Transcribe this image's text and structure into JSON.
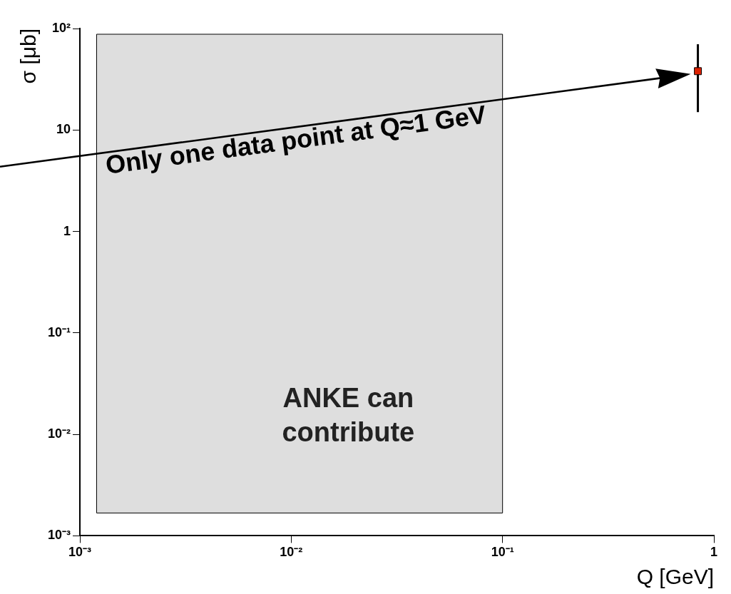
{
  "chart_data": {
    "type": "scatter",
    "xlabel": "Q [GeV]",
    "ylabel": "σ [μb]",
    "log": "xy",
    "grid": false,
    "legend": false,
    "marker": "square",
    "xlim": [
      0.001,
      1
    ],
    "ylim": [
      0.001,
      100
    ],
    "xticks": [
      {
        "value": 0.001,
        "label": "10⁻³"
      },
      {
        "value": 0.01,
        "label": "10⁻²"
      },
      {
        "value": 0.1,
        "label": "10⁻¹"
      },
      1
    ],
    "yticks": [
      {
        "value": 0.001,
        "label": "10⁻³"
      },
      {
        "value": 0.01,
        "label": "10⁻²"
      },
      {
        "value": 0.1,
        "label": "10⁻¹"
      },
      1,
      10,
      {
        "value": 100,
        "label": "10²"
      }
    ],
    "series": [
      {
        "color": "#dd2200",
        "x": [
          0.84
        ],
        "values": [
          38
        ],
        "errors": [
          [
            15,
            70
          ]
        ]
      }
    ],
    "bands": [
      {
        "axis": "x",
        "from": 0.0012,
        "to": 0.1,
        "label": "ANKE can contribute",
        "color": "#dedede"
      }
    ],
    "annotations": [
      "Only one data point at Q≈1 GeV"
    ]
  }
}
